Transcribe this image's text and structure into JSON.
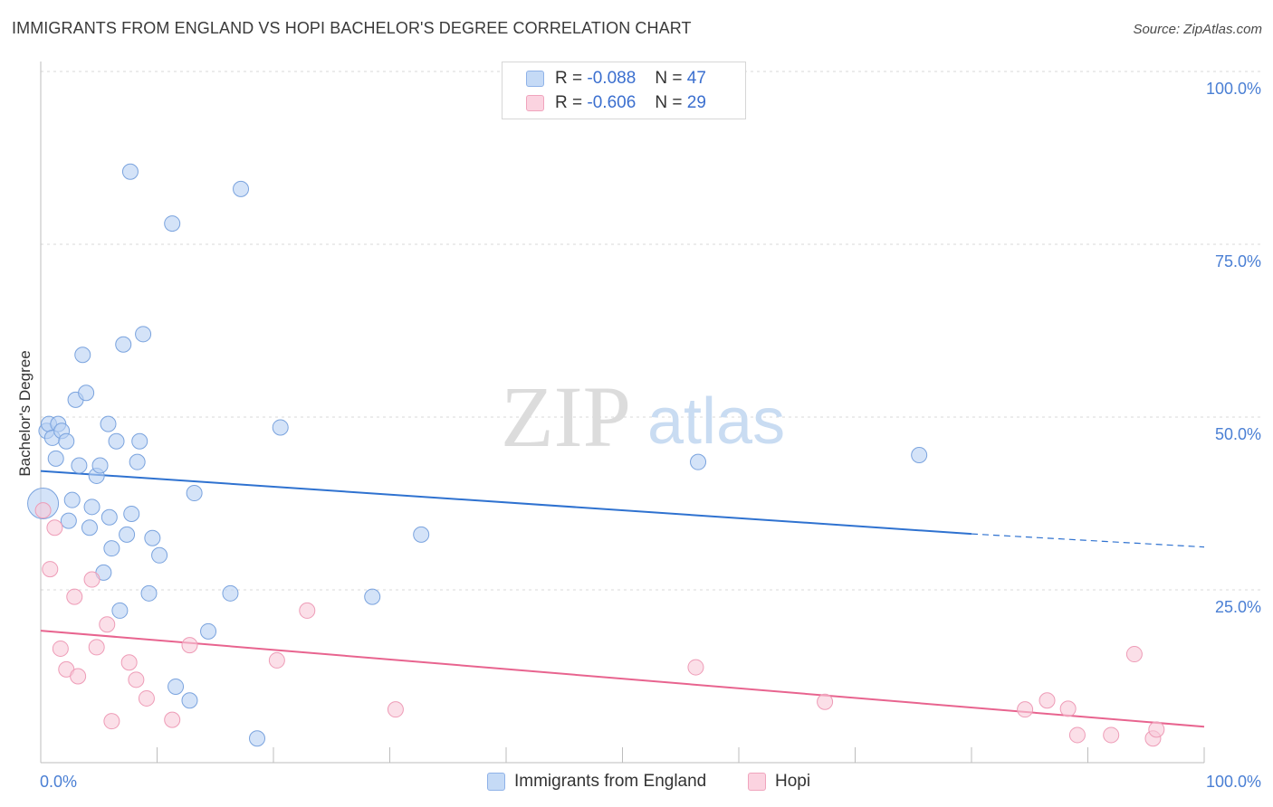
{
  "title": "IMMIGRANTS FROM ENGLAND VS HOPI BACHELOR'S DEGREE CORRELATION CHART",
  "source": "Source: ZipAtlas.com",
  "watermark": {
    "zip": "ZIP",
    "atlas": "atlas"
  },
  "legend": {
    "rows": [
      {
        "r_label": "R =",
        "r_value": "-0.088",
        "n_label": "N =",
        "n_value": "47",
        "color": "#b8d1f3",
        "border": "#8fb2e8"
      },
      {
        "r_label": "R =",
        "r_value": "-0.606",
        "n_label": "N =",
        "n_value": "29",
        "color": "#f9c9d8",
        "border": "#f0a4bd"
      }
    ]
  },
  "bottom_legend": {
    "series1": "Immigrants from England",
    "series2": "Hopi"
  },
  "chart_data": {
    "type": "scatter",
    "title": "IMMIGRANTS FROM ENGLAND VS HOPI BACHELOR'S DEGREE CORRELATION CHART",
    "xlabel": "",
    "ylabel": "Bachelor's Degree",
    "xlim": [
      0,
      100
    ],
    "ylim": [
      0,
      100
    ],
    "x_tick_labels": [
      "0.0%",
      "100.0%"
    ],
    "y_tick_labels": [
      "100.0%",
      "75.0%",
      "50.0%",
      "25.0%"
    ],
    "y_ticks": [
      100,
      75,
      50,
      25
    ],
    "grid": true,
    "series": [
      {
        "name": "Immigrants from England",
        "color": "#b8d1f3",
        "stroke": "#7aa3de",
        "trend_color": "#2f72d0",
        "trend": {
          "x0": 0,
          "y0": 42.2,
          "x1": 80,
          "y1": 33.1,
          "dash_to_x": 100,
          "dash_to_y": 31.2
        },
        "points": [
          [
            0.2,
            37.5,
            "large"
          ],
          [
            0.5,
            48
          ],
          [
            0.7,
            49
          ],
          [
            1,
            47
          ],
          [
            1.5,
            49
          ],
          [
            1.3,
            44
          ],
          [
            1.8,
            48
          ],
          [
            2.2,
            46.5
          ],
          [
            2.4,
            35
          ],
          [
            2.7,
            38
          ],
          [
            3,
            52.5
          ],
          [
            3.3,
            43
          ],
          [
            3.6,
            59
          ],
          [
            3.9,
            53.5
          ],
          [
            4.2,
            34
          ],
          [
            4.4,
            37
          ],
          [
            4.8,
            41.5
          ],
          [
            5.1,
            43
          ],
          [
            5.4,
            27.5
          ],
          [
            5.8,
            49
          ],
          [
            5.9,
            35.5
          ],
          [
            6.1,
            31
          ],
          [
            6.5,
            46.5
          ],
          [
            6.8,
            22
          ],
          [
            7.1,
            60.5
          ],
          [
            7.4,
            33
          ],
          [
            7.7,
            85.5
          ],
          [
            7.8,
            36
          ],
          [
            8.3,
            43.5
          ],
          [
            8.5,
            46.5
          ],
          [
            8.8,
            62
          ],
          [
            9.3,
            24.5
          ],
          [
            9.6,
            32.5
          ],
          [
            10.2,
            30
          ],
          [
            11.3,
            78
          ],
          [
            11.6,
            11
          ],
          [
            12.8,
            9
          ],
          [
            13.2,
            39
          ],
          [
            14.4,
            19
          ],
          [
            16.3,
            24.5
          ],
          [
            17.2,
            83
          ],
          [
            18.6,
            3.5
          ],
          [
            20.6,
            48.5
          ],
          [
            28.5,
            24
          ],
          [
            32.7,
            33
          ],
          [
            56.5,
            43.5
          ],
          [
            75.5,
            44.5
          ]
        ]
      },
      {
        "name": "Hopi",
        "color": "#f9c9d8",
        "stroke": "#ee9cb7",
        "trend_color": "#e8648f",
        "trend": {
          "x0": 0,
          "y0": 19.1,
          "x1": 100,
          "y1": 5.2
        },
        "points": [
          [
            0.2,
            36.5
          ],
          [
            1.2,
            34
          ],
          [
            0.8,
            28
          ],
          [
            1.7,
            16.5
          ],
          [
            2.2,
            13.5
          ],
          [
            2.9,
            24
          ],
          [
            3.2,
            12.5
          ],
          [
            4.4,
            26.5
          ],
          [
            4.8,
            16.7
          ],
          [
            5.7,
            20
          ],
          [
            6.1,
            6
          ],
          [
            7.6,
            14.5
          ],
          [
            8.2,
            12
          ],
          [
            9.1,
            9.3
          ],
          [
            11.3,
            6.2
          ],
          [
            12.8,
            17
          ],
          [
            20.3,
            14.8
          ],
          [
            22.9,
            22
          ],
          [
            30.5,
            7.7
          ],
          [
            56.3,
            13.8
          ],
          [
            67.4,
            8.8
          ],
          [
            84.6,
            7.7
          ],
          [
            86.5,
            9
          ],
          [
            88.3,
            7.8
          ],
          [
            89.1,
            4
          ],
          [
            92,
            4
          ],
          [
            94,
            15.7
          ],
          [
            95.6,
            3.5
          ],
          [
            95.9,
            4.8
          ]
        ]
      }
    ]
  }
}
